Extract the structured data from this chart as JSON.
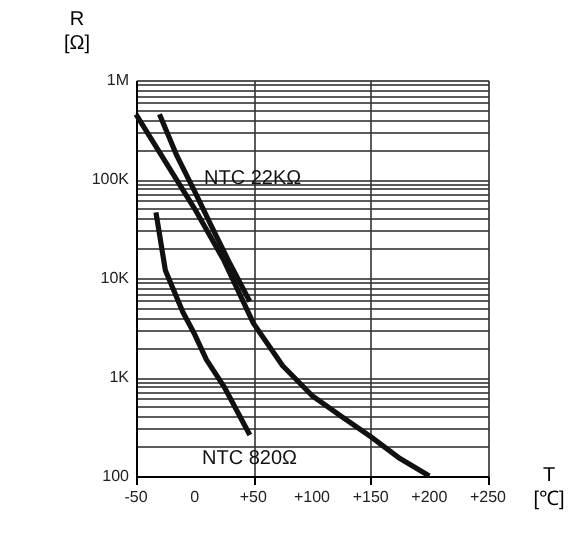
{
  "chart_data": {
    "type": "line",
    "xlabel": "T [℃]",
    "ylabel": "R [Ω]",
    "log": "y",
    "grid": true,
    "marker": "none",
    "line_style": "solid",
    "xlim": [
      -50,
      250
    ],
    "ylim": [
      100,
      1000000
    ],
    "xticks": [
      {
        "value": -50,
        "label": "-50"
      },
      0,
      {
        "value": 50,
        "label": "+50"
      },
      {
        "value": 100,
        "label": "+100"
      },
      {
        "value": 150,
        "label": "+150"
      },
      {
        "value": 200,
        "label": "+200"
      },
      {
        "value": 250,
        "label": "+250"
      }
    ],
    "yticks": [
      100,
      {
        "value": 200,
        "label": null
      },
      {
        "value": 300,
        "label": null
      },
      {
        "value": 400,
        "label": null
      },
      {
        "value": 500,
        "label": null
      },
      {
        "value": 600,
        "label": null
      },
      {
        "value": 700,
        "label": null
      },
      {
        "value": 800,
        "label": null
      },
      {
        "value": 900,
        "label": null
      },
      {
        "value": 1000,
        "label": "1K"
      },
      {
        "value": 2000,
        "label": null
      },
      {
        "value": 3000,
        "label": null
      },
      {
        "value": 4000,
        "label": null
      },
      {
        "value": 5000,
        "label": null
      },
      {
        "value": 6000,
        "label": null
      },
      {
        "value": 7000,
        "label": null
      },
      {
        "value": 8000,
        "label": null
      },
      {
        "value": 9000,
        "label": null
      },
      {
        "value": 10000,
        "label": "10K"
      },
      {
        "value": 20000,
        "label": null
      },
      {
        "value": 30000,
        "label": null
      },
      {
        "value": 40000,
        "label": null
      },
      {
        "value": 50000,
        "label": null
      },
      {
        "value": 60000,
        "label": null
      },
      {
        "value": 70000,
        "label": null
      },
      {
        "value": 80000,
        "label": null
      },
      {
        "value": 90000,
        "label": null
      },
      {
        "value": 100000,
        "label": "100K"
      },
      {
        "value": 200000,
        "label": null
      },
      {
        "value": 300000,
        "label": null
      },
      {
        "value": 400000,
        "label": null
      },
      {
        "value": 500000,
        "label": null
      },
      {
        "value": 600000,
        "label": null
      },
      {
        "value": 700000,
        "label": null
      },
      {
        "value": 800000,
        "label": null
      },
      {
        "value": 900000,
        "label": null
      },
      {
        "value": 1000000,
        "label": "1M"
      }
    ],
    "series": [
      {
        "color": "#111111",
        "x": [
          -50,
          -25,
          0,
          25,
          50,
          75,
          100,
          125,
          150,
          175,
          200
        ],
        "values": [
          450000,
          150000,
          50000,
          15000,
          3500,
          1300,
          650,
          400,
          250,
          150,
          100
        ]
      },
      {
        "color": "#111111",
        "x": [
          -30,
          -15,
          0,
          15,
          30,
          47
        ],
        "values": [
          450000,
          170000,
          75000,
          32000,
          14000,
          5800
        ]
      },
      {
        "color": "#111111",
        "x": [
          -33,
          -25,
          -10,
          0,
          10,
          25,
          47
        ],
        "values": [
          46000,
          12000,
          4500,
          2700,
          1500,
          800,
          260
        ]
      }
    ],
    "annotations": [
      "NTC 22KΩ",
      "NTC 820Ω"
    ]
  }
}
